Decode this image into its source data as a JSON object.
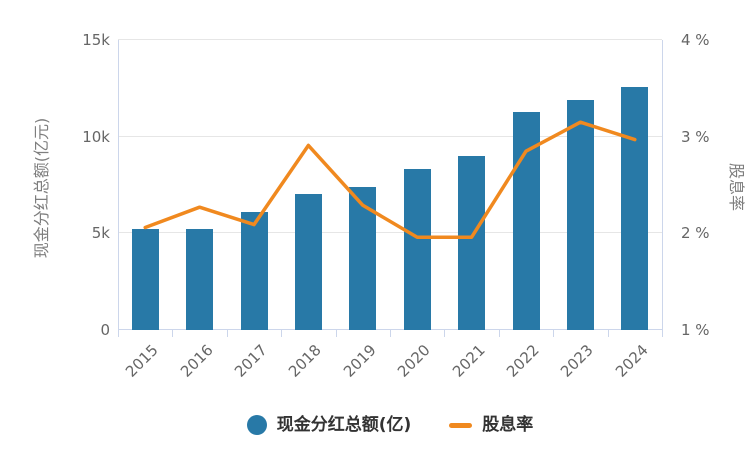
{
  "chart_data": {
    "type": "bar+line",
    "categories": [
      "2015",
      "2016",
      "2017",
      "2018",
      "2019",
      "2020",
      "2021",
      "2022",
      "2023",
      "2024"
    ],
    "series": [
      {
        "name": "现金分红总额(亿)",
        "type": "bar",
        "axis": "left",
        "color": "#2879a7",
        "values": [
          5200,
          5200,
          6100,
          7050,
          7400,
          8350,
          9000,
          11300,
          11900,
          12550
        ]
      },
      {
        "name": "股息率",
        "type": "line",
        "axis": "right",
        "color": "#f0891f",
        "values": [
          2.06,
          2.27,
          2.09,
          2.91,
          2.29,
          1.96,
          1.96,
          2.85,
          3.15,
          2.97
        ]
      }
    ],
    "left_axis": {
      "title": "现金分红总额(亿元)",
      "ticks": [
        "0",
        "5k",
        "10k",
        "15k"
      ],
      "min": 0,
      "max": 15000
    },
    "right_axis": {
      "title": "股息率",
      "ticks": [
        "1 %",
        "2 %",
        "3 %",
        "4 %"
      ],
      "min": 1,
      "max": 4
    },
    "legend": [
      {
        "label": "现金分红总额(亿)",
        "marker": "circle",
        "color": "#2879a7"
      },
      {
        "label": "股息率",
        "marker": "line",
        "color": "#f0891f"
      }
    ],
    "grid": true,
    "legend_position": "bottom"
  },
  "colors": {
    "axis_line": "#ccd6eb",
    "gridline": "#e6e6e6",
    "tick_label": "#666666",
    "axis_title": "#7e7e7e",
    "legend_text": "#333333",
    "background": "#ffffff"
  }
}
